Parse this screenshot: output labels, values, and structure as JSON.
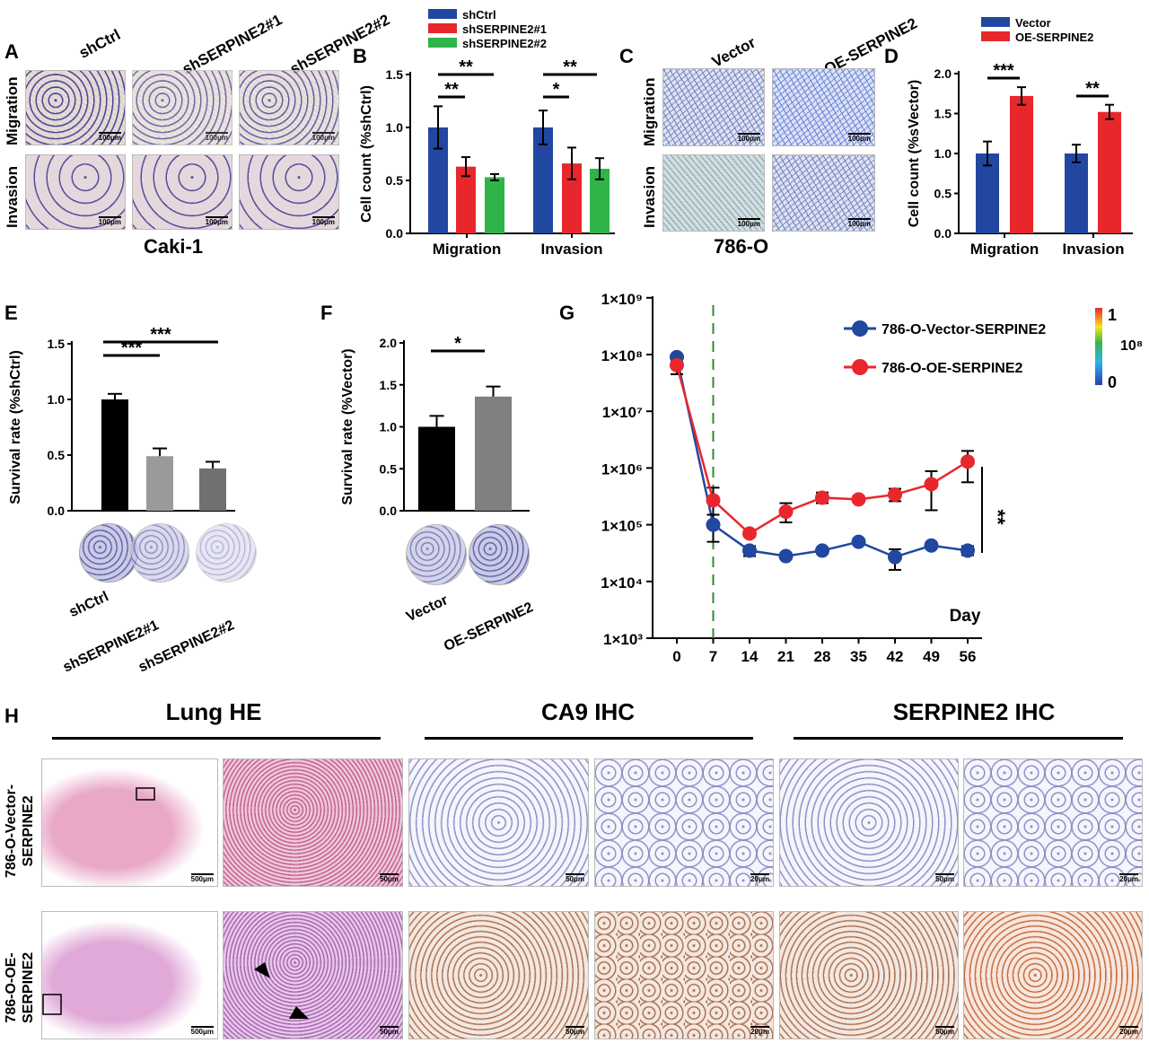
{
  "panel_labels": {
    "A": "A",
    "B": "B",
    "C": "C",
    "D": "D",
    "E": "E",
    "F": "F",
    "G": "G",
    "H": "H"
  },
  "panelA": {
    "columns": [
      "shCtrl",
      "shSERPINE2#1",
      "shSERPINE2#2"
    ],
    "rows": [
      "Migration",
      "Invasion"
    ],
    "scale": "100μm",
    "cell_line": "Caki-1"
  },
  "panelC": {
    "columns": [
      "Vector",
      "OE-SERPINE2"
    ],
    "rows": [
      "Migration",
      "Invasion"
    ],
    "scale": "100μm",
    "cell_line": "786-O"
  },
  "panelH": {
    "headings": [
      "Lung HE",
      "CA9 IHC",
      "SERPINE2 IHC"
    ],
    "rows": [
      [
        "786-O-Vector-",
        "SERPINE2"
      ],
      [
        "786-O-OE-",
        "SERPINE2"
      ]
    ],
    "scales": [
      "500μm",
      "50μm",
      "50μm",
      "20μm",
      "50μm",
      "20μm"
    ]
  },
  "colors": {
    "blue": "#2147a0",
    "red": "#e8272d",
    "green": "#2fb44a",
    "black": "#000000",
    "gray": "#9a9a9a",
    "darkgray": "#707070"
  },
  "chart_data": [
    {
      "panel": "B",
      "type": "bar",
      "categories": [
        "Migration",
        "Invasion"
      ],
      "series": [
        {
          "name": "shCtrl",
          "values": [
            1.0,
            1.0
          ],
          "errors": [
            0.2,
            0.16
          ],
          "color": "#2147a0"
        },
        {
          "name": "shSERPINE2#1",
          "values": [
            0.63,
            0.66
          ],
          "errors": [
            0.09,
            0.15
          ],
          "color": "#e8272d"
        },
        {
          "name": "shSERPINE2#2",
          "values": [
            0.53,
            0.61
          ],
          "errors": [
            0.03,
            0.1
          ],
          "color": "#2fb44a"
        }
      ],
      "ylabel": "Cell count (%shCtrl)",
      "ylim": [
        0,
        1.5
      ],
      "yticks": [
        "0.0",
        "0.5",
        "1.0",
        "1.5"
      ],
      "significance": [
        {
          "group": "Migration",
          "pair": "shCtrl-shSERPINE2#2",
          "mark": "**"
        },
        {
          "group": "Migration",
          "pair": "shCtrl-shSERPINE2#1",
          "mark": "**"
        },
        {
          "group": "Invasion",
          "pair": "shCtrl-shSERPINE2#2",
          "mark": "**"
        },
        {
          "group": "Invasion",
          "pair": "shCtrl-shSERPINE2#1",
          "mark": "*"
        }
      ],
      "legend": "top"
    },
    {
      "panel": "D",
      "type": "bar",
      "categories": [
        "Migration",
        "Invasion"
      ],
      "series": [
        {
          "name": "Vector",
          "values": [
            1.0,
            1.0
          ],
          "errors": [
            0.15,
            0.11
          ],
          "color": "#2147a0"
        },
        {
          "name": "OE-SERPINE2",
          "values": [
            1.72,
            1.52
          ],
          "errors": [
            0.11,
            0.09
          ],
          "color": "#e8272d"
        }
      ],
      "ylabel": "Cell count (%sVector)",
      "ylim": [
        0,
        2.0
      ],
      "yticks": [
        "0.0",
        "0.5",
        "1.0",
        "1.5",
        "2.0"
      ],
      "significance": [
        {
          "group": "Migration",
          "mark": "***"
        },
        {
          "group": "Invasion",
          "mark": "**"
        }
      ],
      "legend": "top"
    },
    {
      "panel": "E",
      "type": "bar",
      "categories": [
        "shCtrl",
        "shSERPINE2#1",
        "shSERPINE2#2"
      ],
      "values": [
        1.0,
        0.49,
        0.38
      ],
      "errors": [
        0.05,
        0.07,
        0.06
      ],
      "colors": [
        "#000000",
        "#9a9a9a",
        "#707070"
      ],
      "ylabel": "Survival rate (%shCtrl)",
      "ylim": [
        0,
        1.5
      ],
      "yticks": [
        "0.0",
        "0.5",
        "1.0",
        "1.5"
      ],
      "significance": [
        {
          "pair": "shCtrl-shSERPINE2#1",
          "mark": "***"
        },
        {
          "pair": "shCtrl-shSERPINE2#2",
          "mark": "***"
        }
      ]
    },
    {
      "panel": "F",
      "type": "bar",
      "categories": [
        "Vector",
        "OE-SERPINE2"
      ],
      "values": [
        1.0,
        1.36
      ],
      "errors": [
        0.13,
        0.12
      ],
      "colors": [
        "#000000",
        "#808080"
      ],
      "ylabel": "Survival rate (%Vector)",
      "ylim": [
        0,
        2.0
      ],
      "yticks": [
        "0.0",
        "0.5",
        "1.0",
        "1.5",
        "2.0"
      ],
      "significance": [
        {
          "pair": "Vector-OE-SERPINE2",
          "mark": "*"
        }
      ]
    },
    {
      "panel": "G",
      "type": "line",
      "x": [
        0,
        7,
        14,
        21,
        28,
        35,
        42,
        49,
        56
      ],
      "xlabel": "Day",
      "yscale": "log",
      "ylim": [
        1000,
        1000000000
      ],
      "yticks": [
        "1×10³",
        "1×10⁴",
        "1×10⁵",
        "1×10⁶",
        "1×10⁷",
        "1×10⁸",
        "1×10⁹"
      ],
      "xticks": [
        "0",
        "7",
        "14",
        "21",
        "28",
        "35",
        "42",
        "49",
        "56"
      ],
      "series": [
        {
          "name": "786-O-Vector-SERPINE2",
          "color": "#2147a0",
          "values": [
            90000000,
            100000,
            35000,
            28000,
            35000,
            50000,
            27000,
            43000,
            35000
          ],
          "err_low": [
            90000000,
            50000,
            28000,
            25000,
            31000,
            46000,
            16000,
            38000,
            29000
          ],
          "err_high": [
            95000000,
            150000,
            42000,
            31000,
            39000,
            54000,
            37000,
            48000,
            42000
          ]
        },
        {
          "name": "786-O-OE-SERPINE2",
          "color": "#e8272d",
          "values": [
            65000000,
            270000,
            70000,
            170000,
            300000,
            280000,
            340000,
            520000,
            1300000
          ],
          "err_low": [
            45000000,
            150000,
            62000,
            110000,
            240000,
            250000,
            260000,
            180000,
            560000
          ],
          "err_high": [
            70000000,
            450000,
            78000,
            240000,
            370000,
            320000,
            430000,
            880000,
            2000000
          ]
        }
      ],
      "vline_day": 7,
      "significance": "**",
      "colorbar": {
        "labels": [
          "1",
          "10⁸",
          "0"
        ]
      },
      "legend": "top-right"
    }
  ]
}
